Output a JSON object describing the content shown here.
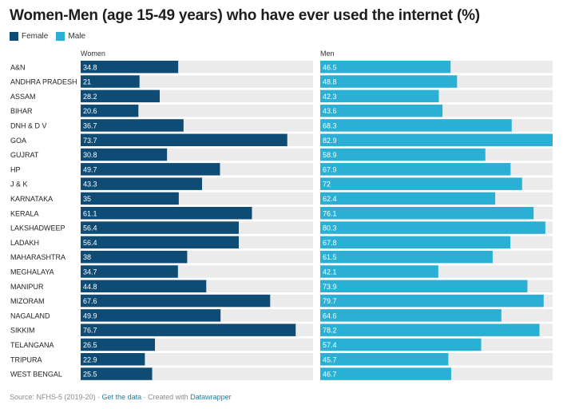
{
  "title": "Women-Men (age 15-49 years) who have ever used the internet (%)",
  "legend": [
    {
      "label": "Female",
      "color": "#0f4c75"
    },
    {
      "label": "Male",
      "color": "#2ab0d4"
    }
  ],
  "footer": {
    "source": "Source: NFHS-5 (2019-20)",
    "sep1": " · ",
    "get_data": "Get the data",
    "sep2": " · Created with ",
    "created_with": "Datawrapper"
  },
  "colors": {
    "female": "#0f4c75",
    "male": "#2ab0d4",
    "track": "#ebebeb"
  },
  "chart_data": {
    "type": "bar",
    "orientation": "horizontal",
    "panels": [
      "Women",
      "Men"
    ],
    "xlim": [
      0,
      82.9
    ],
    "categories": [
      "A&N",
      "ANDHRA PRADESH",
      "ASSAM",
      "BIHAR",
      "DNH & D V",
      "GOA",
      "GUJRAT",
      "HP",
      "J & K",
      "KARNATAKA",
      "KERALA",
      "LAKSHADWEEP",
      "LADAKH",
      "MAHARASHTRA",
      "MEGHALAYA",
      "MANIPUR",
      "MIZORAM",
      "NAGALAND",
      "SIKKIM",
      "TELANGANA",
      "TRIPURA",
      "WEST BENGAL"
    ],
    "series": [
      {
        "name": "Female",
        "panel": "Women",
        "values": [
          34.8,
          21,
          28.2,
          20.6,
          36.7,
          73.7,
          30.8,
          49.7,
          43.3,
          35,
          61.1,
          56.4,
          56.4,
          38,
          34.7,
          44.8,
          67.6,
          49.9,
          76.7,
          26.5,
          22.9,
          25.5
        ]
      },
      {
        "name": "Male",
        "panel": "Men",
        "values": [
          46.5,
          48.8,
          42.3,
          43.6,
          68.3,
          82.9,
          58.9,
          67.9,
          72,
          62.4,
          76.1,
          80.3,
          67.8,
          61.5,
          42.1,
          73.9,
          79.7,
          64.6,
          78.2,
          57.4,
          45.7,
          46.7
        ]
      }
    ]
  }
}
